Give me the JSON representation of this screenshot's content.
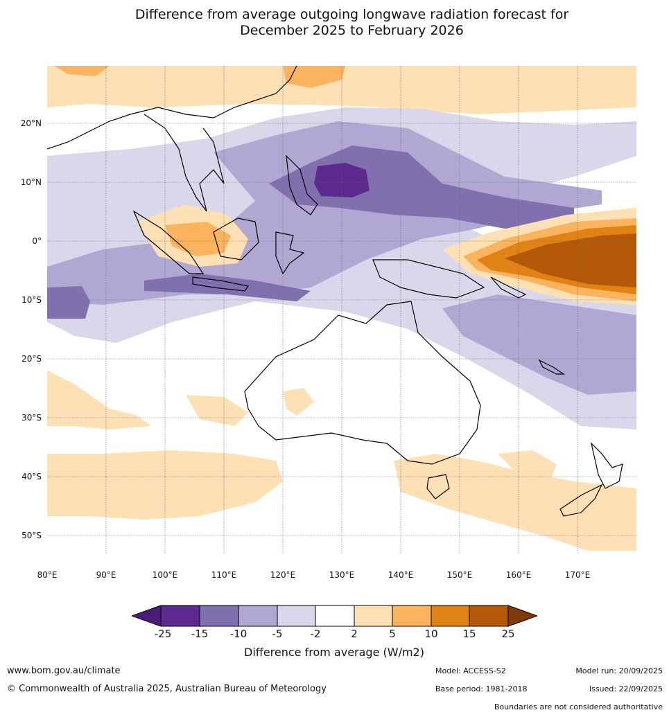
{
  "title_line1": "Difference from average outgoing longwave radiation forecast for",
  "title_line2": "December 2025 to February 2026",
  "latitude_labels": [
    "20°N",
    "10°N",
    "0°",
    "10°S",
    "20°S",
    "30°S",
    "40°S",
    "50°S"
  ],
  "latitude_values": [
    20,
    10,
    0,
    -10,
    -20,
    -30,
    -40,
    -50
  ],
  "longitude_labels": [
    "80°E",
    "90°E",
    "100°E",
    "110°E",
    "120°E",
    "130°E",
    "140°E",
    "150°E",
    "160°E",
    "170°E"
  ],
  "longitude_values": [
    80,
    90,
    100,
    110,
    120,
    130,
    140,
    150,
    160,
    170
  ],
  "map_extent": {
    "lon_min": 80,
    "lon_max": 180,
    "lat_min": -55,
    "lat_max": 30
  },
  "colorbar": {
    "title": "Difference from average (W/m2)",
    "ticks": [
      "-25",
      "-15",
      "-10",
      "-5",
      "-2",
      "2",
      "5",
      "10",
      "15",
      "25"
    ],
    "colors": [
      "#4a1d7a",
      "#5c2a8e",
      "#8170ae",
      "#b0a8d2",
      "#d8d8ea",
      "#ffffff",
      "#fde0b4",
      "#fbb35d",
      "#e08214",
      "#b35806",
      "#7f3b08"
    ]
  },
  "footer": {
    "website": "www.bom.gov.au/climate",
    "copyright": "© Commonwealth of Australia 2025, Australian Bureau of Meteorology",
    "model": "Model: ACCESS-S2",
    "base_period": "Base period: 1981-2018",
    "model_run": "Model run: 20/09/2025",
    "issued": "Issued: 22/09/2025",
    "disclaimer": "Boundaries are not considered authoritative"
  }
}
